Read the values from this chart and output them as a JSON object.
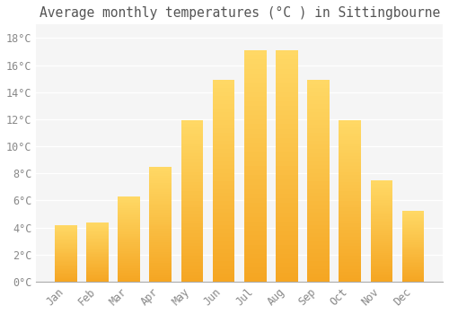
{
  "title": "Average monthly temperatures (°C ) in Sittingbourne",
  "months": [
    "Jan",
    "Feb",
    "Mar",
    "Apr",
    "May",
    "Jun",
    "Jul",
    "Aug",
    "Sep",
    "Oct",
    "Nov",
    "Dec"
  ],
  "values": [
    4.2,
    4.4,
    6.3,
    8.5,
    11.9,
    14.9,
    17.1,
    17.1,
    14.9,
    11.9,
    7.5,
    5.2
  ],
  "bar_color_bottom": "#F5A623",
  "bar_color_top": "#FFD966",
  "background_color": "#ffffff",
  "plot_background": "#f5f5f5",
  "grid_color": "#ffffff",
  "tick_label_color": "#888888",
  "title_color": "#555555",
  "ylim": [
    0,
    19
  ],
  "yticks": [
    0,
    2,
    4,
    6,
    8,
    10,
    12,
    14,
    16,
    18
  ],
  "ytick_labels": [
    "0°C",
    "2°C",
    "4°C",
    "6°C",
    "8°C",
    "10°C",
    "12°C",
    "14°C",
    "16°C",
    "18°C"
  ],
  "title_fontsize": 10.5,
  "tick_fontsize": 8.5
}
